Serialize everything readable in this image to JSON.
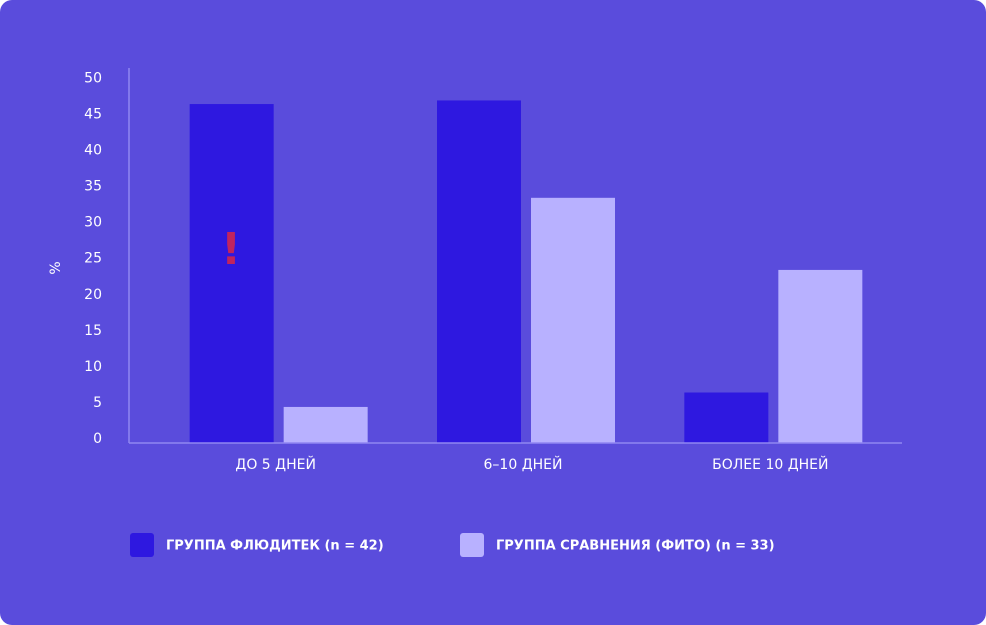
{
  "chart_data": {
    "type": "bar",
    "y_label": "%",
    "annotation": "!",
    "categories": [
      "ДО 5 ДНЕЙ",
      "6–10 ДНЕЙ",
      "БОЛЕЕ 10 ДНЕЙ"
    ],
    "series": [
      {
        "name": "ГРУППА ФЛЮДИТЕК (n = 42)",
        "color": "#2e18e0",
        "values": [
          47,
          47.5,
          7
        ]
      },
      {
        "name": "ГРУППА СРАВНЕНИЯ (ФИТО) (n = 33)",
        "color": "#b8b1ff",
        "values": [
          5,
          34,
          24
        ]
      }
    ],
    "ylim": [
      0,
      52
    ],
    "yticks": [
      0,
      5,
      10,
      15,
      20,
      25,
      30,
      35,
      40,
      45,
      50
    ]
  }
}
